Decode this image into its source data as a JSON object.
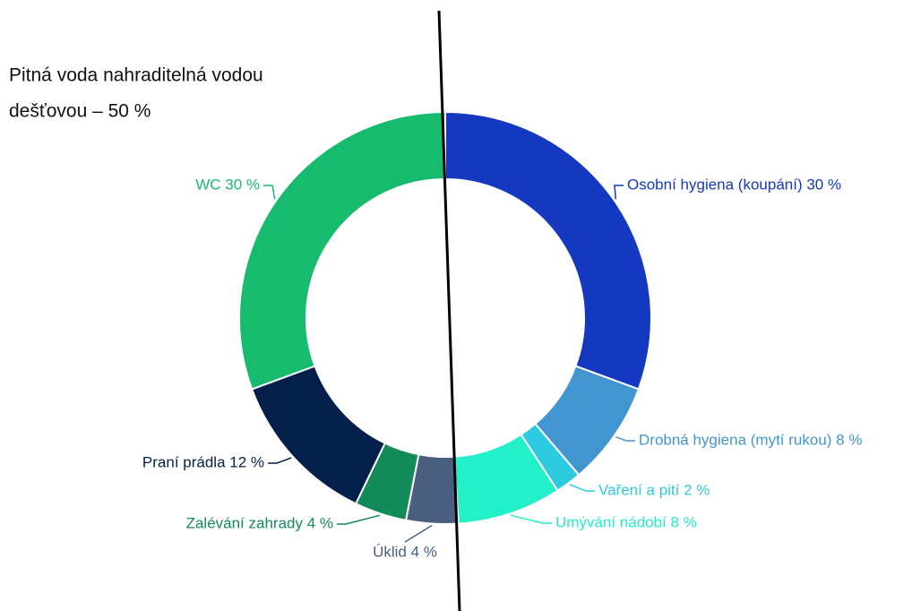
{
  "chart_data": {
    "type": "donut",
    "annotation": [
      "Pitná voda nahraditelná vodou",
      "dešťovou – 50 %"
    ],
    "values": [
      30,
      8,
      2,
      8,
      4,
      4,
      12,
      30
    ],
    "value_labels": [
      "Osobní hygiena (koupání) 30 %",
      "Drobná hygiena (mytí rukou) 8 %",
      "Vaření a pití 2 %",
      "Umývání nádobí 8 %",
      "Úklid 4 %",
      "Zalévání zahrady 4 %",
      "Praní prádla 12 %",
      "WC 30 %"
    ],
    "colors": [
      "#1438c0",
      "#4296d0",
      "#2ecbe0",
      "#22f0c8",
      "#4a5f80",
      "#138a5a",
      "#04204a",
      "#16bb6e"
    ]
  }
}
